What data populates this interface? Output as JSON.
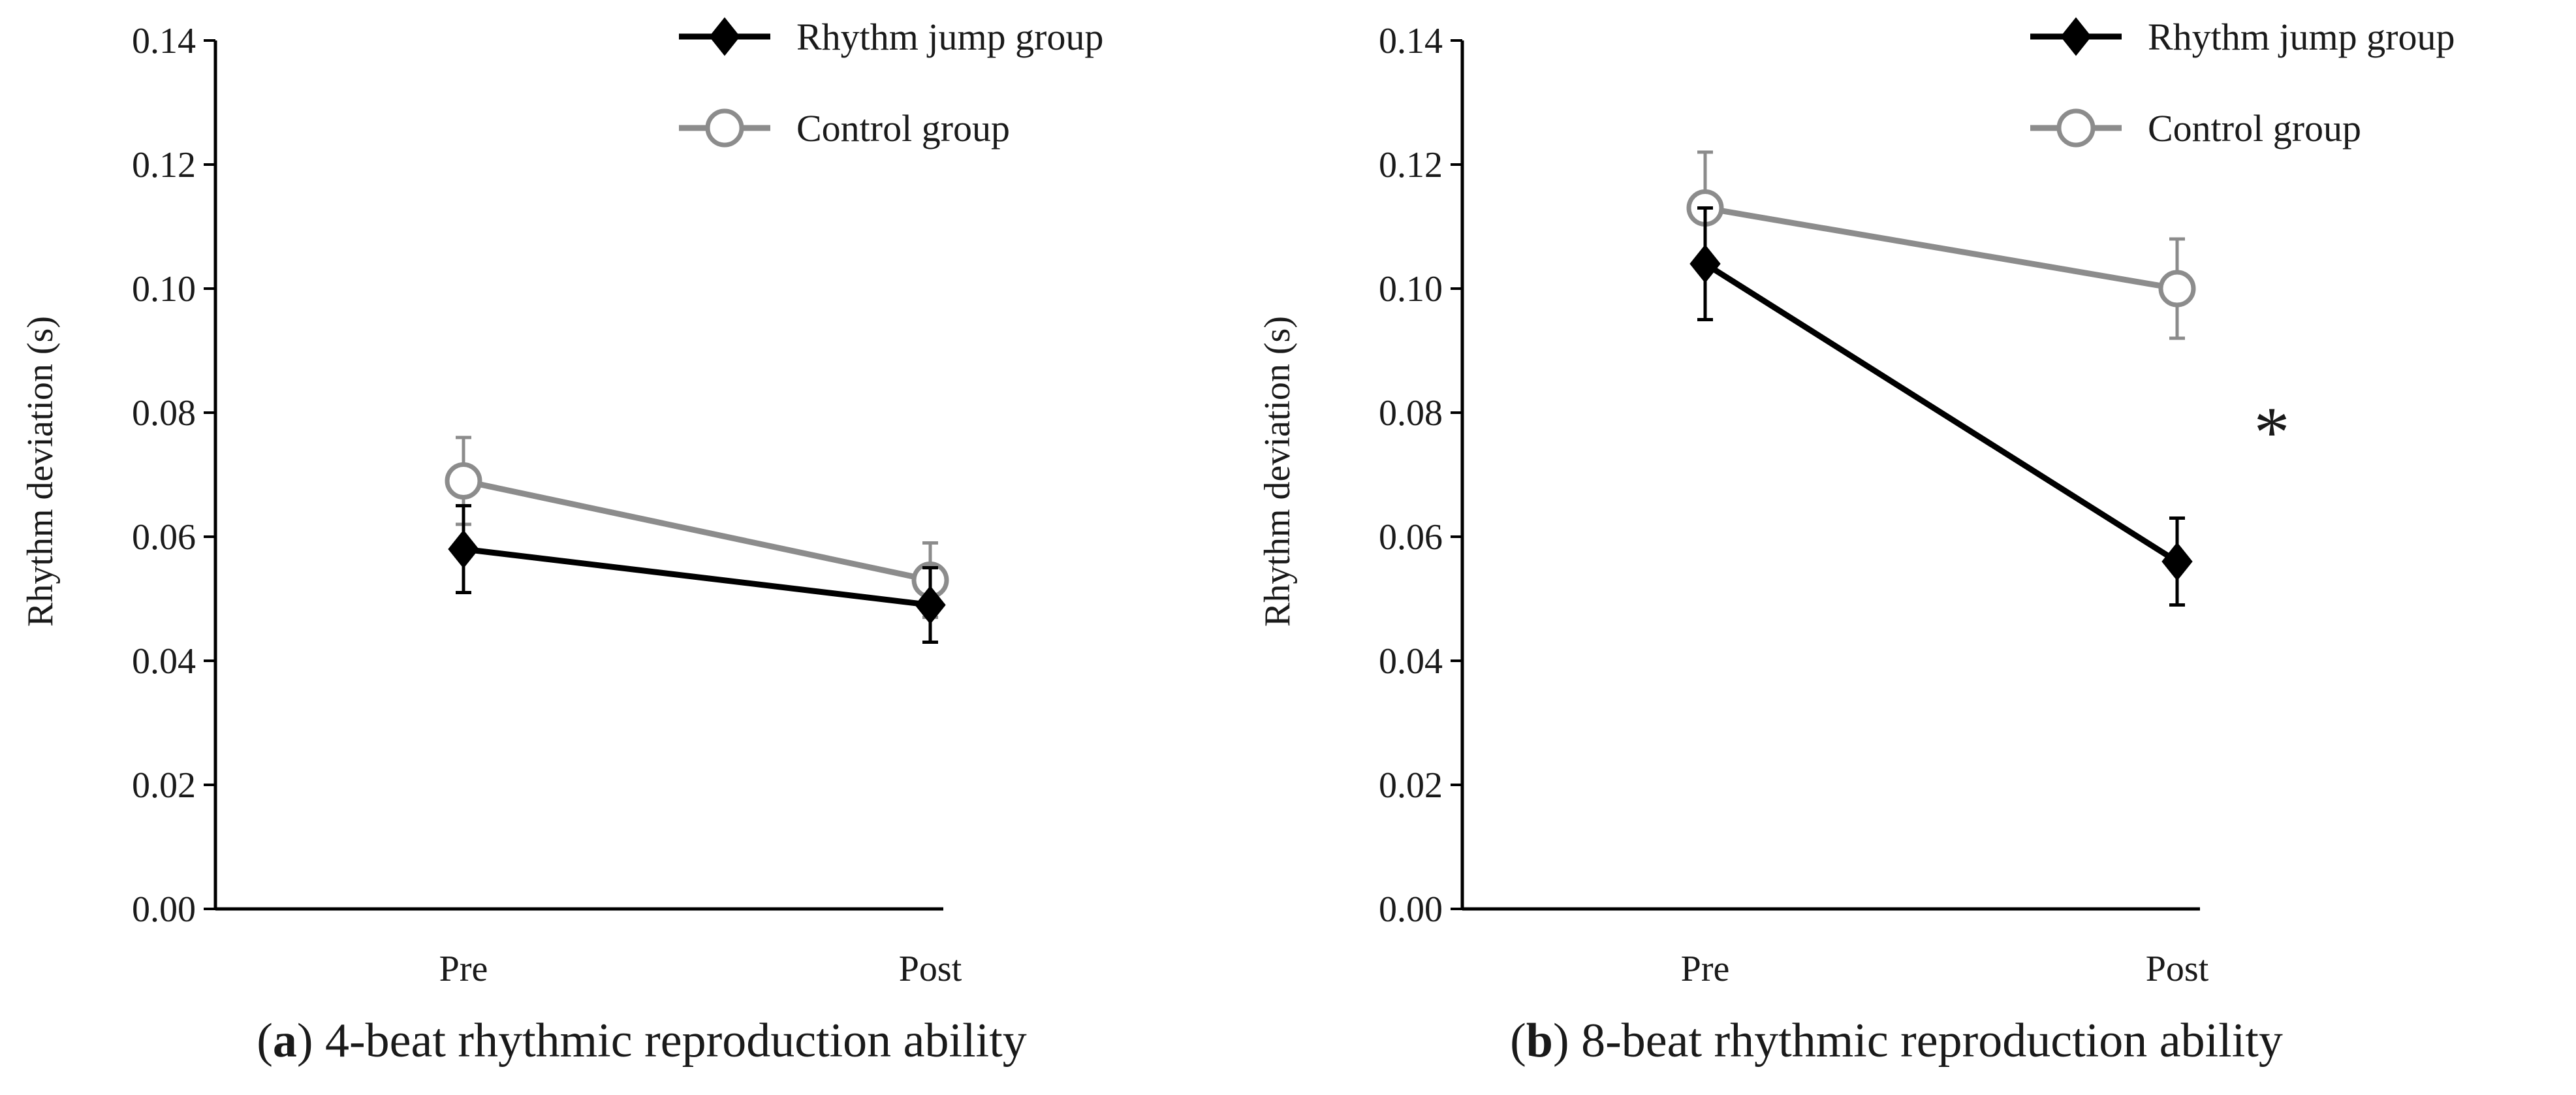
{
  "colors": {
    "rhythm_jump": "#000000",
    "control": "#8c8c8c",
    "axis": "#000000"
  },
  "legend": {
    "rhythm_jump_label": "Rhythm jump group",
    "control_label": "Control group"
  },
  "chart_data": [
    {
      "id": "a",
      "type": "line",
      "caption_letter": "a",
      "caption_open": "(",
      "caption_close": ")",
      "caption_text": " 4-beat rhythmic reproduction ability",
      "title": "(a) 4-beat rhythmic reproduction ability",
      "xlabel": "",
      "ylabel": "Rhythm deviation (s)",
      "categories": [
        "Pre",
        "Post"
      ],
      "ylim": [
        0,
        0.14
      ],
      "yticks": [
        "0.00",
        "0.02",
        "0.04",
        "0.06",
        "0.08",
        "0.10",
        "0.12",
        "0.14"
      ],
      "series": [
        {
          "name": "Rhythm jump group",
          "key": "rhythm_jump",
          "marker": "filled-diamond",
          "values": [
            0.058,
            0.049
          ],
          "errors": [
            0.007,
            0.006
          ]
        },
        {
          "name": "Control group",
          "key": "control",
          "marker": "open-circle",
          "values": [
            0.069,
            0.053
          ],
          "errors": [
            0.007,
            0.006
          ]
        }
      ],
      "annotations": []
    },
    {
      "id": "b",
      "type": "line",
      "caption_letter": "b",
      "caption_open": "(",
      "caption_close": ")",
      "caption_text": " 8-beat rhythmic reproduction ability",
      "title": "(b) 8-beat rhythmic reproduction ability",
      "xlabel": "",
      "ylabel": "Rhythm deviation (s)",
      "categories": [
        "Pre",
        "Post"
      ],
      "ylim": [
        0,
        0.14
      ],
      "yticks": [
        "0.00",
        "0.02",
        "0.04",
        "0.06",
        "0.08",
        "0.10",
        "0.12",
        "0.14"
      ],
      "series": [
        {
          "name": "Rhythm jump group",
          "key": "rhythm_jump",
          "marker": "filled-diamond",
          "values": [
            0.104,
            0.056
          ],
          "errors": [
            0.009,
            0.007
          ]
        },
        {
          "name": "Control group",
          "key": "control",
          "marker": "open-circle",
          "values": [
            0.113,
            0.1
          ],
          "errors": [
            0.009,
            0.008
          ]
        }
      ],
      "annotations": [
        {
          "text": "*",
          "x_category": "Post",
          "y": 0.078
        }
      ]
    }
  ]
}
